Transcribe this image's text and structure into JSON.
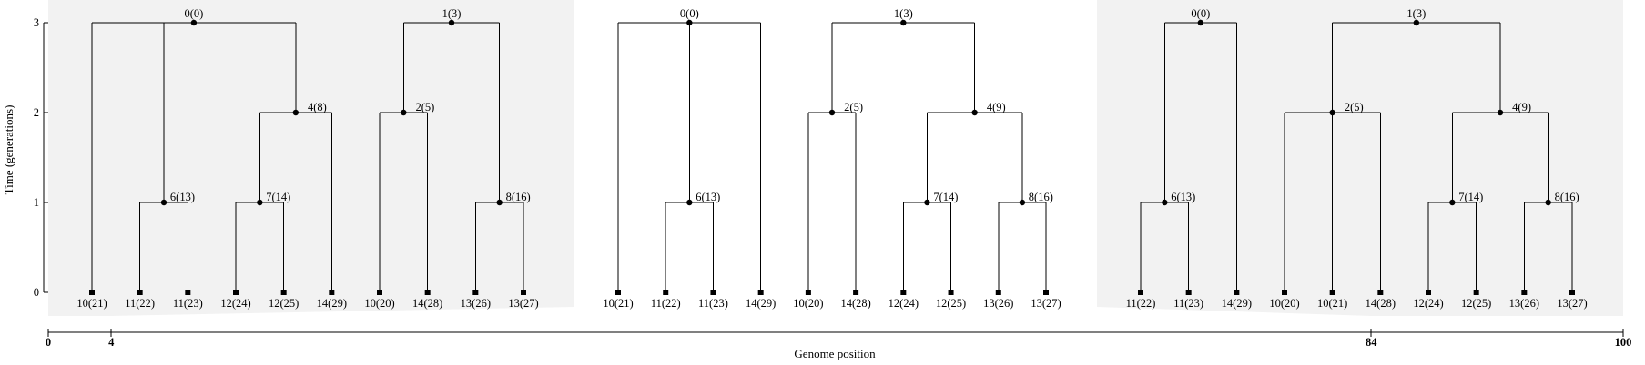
{
  "y_axis": {
    "label": "Time (generations)",
    "ticks": [
      0,
      1,
      2,
      3
    ]
  },
  "x_axis": {
    "label": "Genome position",
    "ticks": [
      {
        "value": 0,
        "label": "0"
      },
      {
        "value": 4,
        "label": "4"
      },
      {
        "value": 84,
        "label": "84"
      },
      {
        "value": 100,
        "label": "100"
      }
    ],
    "range": [
      0,
      100
    ]
  },
  "trees": [
    {
      "interval": [
        0,
        4
      ],
      "shaded": true,
      "leaves": [
        "10(21)",
        "11(22)",
        "11(23)",
        "12(24)",
        "12(25)",
        "14(29)",
        "10(20)",
        "14(28)",
        "13(26)",
        "13(27)"
      ],
      "nodes": [
        {
          "label": "6(13)",
          "time": 1,
          "children": [
            "11(22)",
            "11(23)"
          ]
        },
        {
          "label": "7(14)",
          "time": 1,
          "children": [
            "12(24)",
            "12(25)"
          ]
        },
        {
          "label": "8(16)",
          "time": 1,
          "children": [
            "13(26)",
            "13(27)"
          ]
        },
        {
          "label": "4(8)",
          "time": 2,
          "children": [
            "7(14)",
            "14(29)"
          ]
        },
        {
          "label": "2(5)",
          "time": 2,
          "children": [
            "10(20)",
            "14(28)"
          ]
        },
        {
          "label": "0(0)",
          "time": 3,
          "children": [
            "10(21)",
            "6(13)",
            "4(8)"
          ]
        },
        {
          "label": "1(3)",
          "time": 3,
          "children": [
            "2(5)",
            "8(16)"
          ]
        }
      ]
    },
    {
      "interval": [
        4,
        84
      ],
      "shaded": false,
      "leaves": [
        "10(21)",
        "11(22)",
        "11(23)",
        "14(29)",
        "10(20)",
        "14(28)",
        "12(24)",
        "12(25)",
        "13(26)",
        "13(27)"
      ],
      "nodes": [
        {
          "label": "6(13)",
          "time": 1,
          "children": [
            "11(22)",
            "11(23)"
          ]
        },
        {
          "label": "7(14)",
          "time": 1,
          "children": [
            "12(24)",
            "12(25)"
          ]
        },
        {
          "label": "8(16)",
          "time": 1,
          "children": [
            "13(26)",
            "13(27)"
          ]
        },
        {
          "label": "2(5)",
          "time": 2,
          "children": [
            "10(20)",
            "14(28)"
          ]
        },
        {
          "label": "4(9)",
          "time": 2,
          "children": [
            "7(14)",
            "8(16)"
          ]
        },
        {
          "label": "0(0)",
          "time": 3,
          "children": [
            "10(21)",
            "6(13)",
            "14(29)"
          ]
        },
        {
          "label": "1(3)",
          "time": 3,
          "children": [
            "2(5)",
            "4(9)"
          ]
        }
      ]
    },
    {
      "interval": [
        84,
        100
      ],
      "shaded": true,
      "leaves": [
        "11(22)",
        "11(23)",
        "14(29)",
        "10(20)",
        "10(21)",
        "14(28)",
        "12(24)",
        "12(25)",
        "13(26)",
        "13(27)"
      ],
      "nodes": [
        {
          "label": "6(13)",
          "time": 1,
          "children": [
            "11(22)",
            "11(23)"
          ]
        },
        {
          "label": "7(14)",
          "time": 1,
          "children": [
            "12(24)",
            "12(25)"
          ]
        },
        {
          "label": "8(16)",
          "time": 1,
          "children": [
            "13(26)",
            "13(27)"
          ]
        },
        {
          "label": "2(5)",
          "time": 2,
          "children": [
            "10(20)",
            "10(21)",
            "14(28)"
          ]
        },
        {
          "label": "4(9)",
          "time": 2,
          "children": [
            "7(14)",
            "8(16)"
          ]
        },
        {
          "label": "0(0)",
          "time": 3,
          "children": [
            "6(13)",
            "14(29)"
          ]
        },
        {
          "label": "1(3)",
          "time": 3,
          "children": [
            "2(5)",
            "4(9)"
          ]
        }
      ]
    }
  ]
}
